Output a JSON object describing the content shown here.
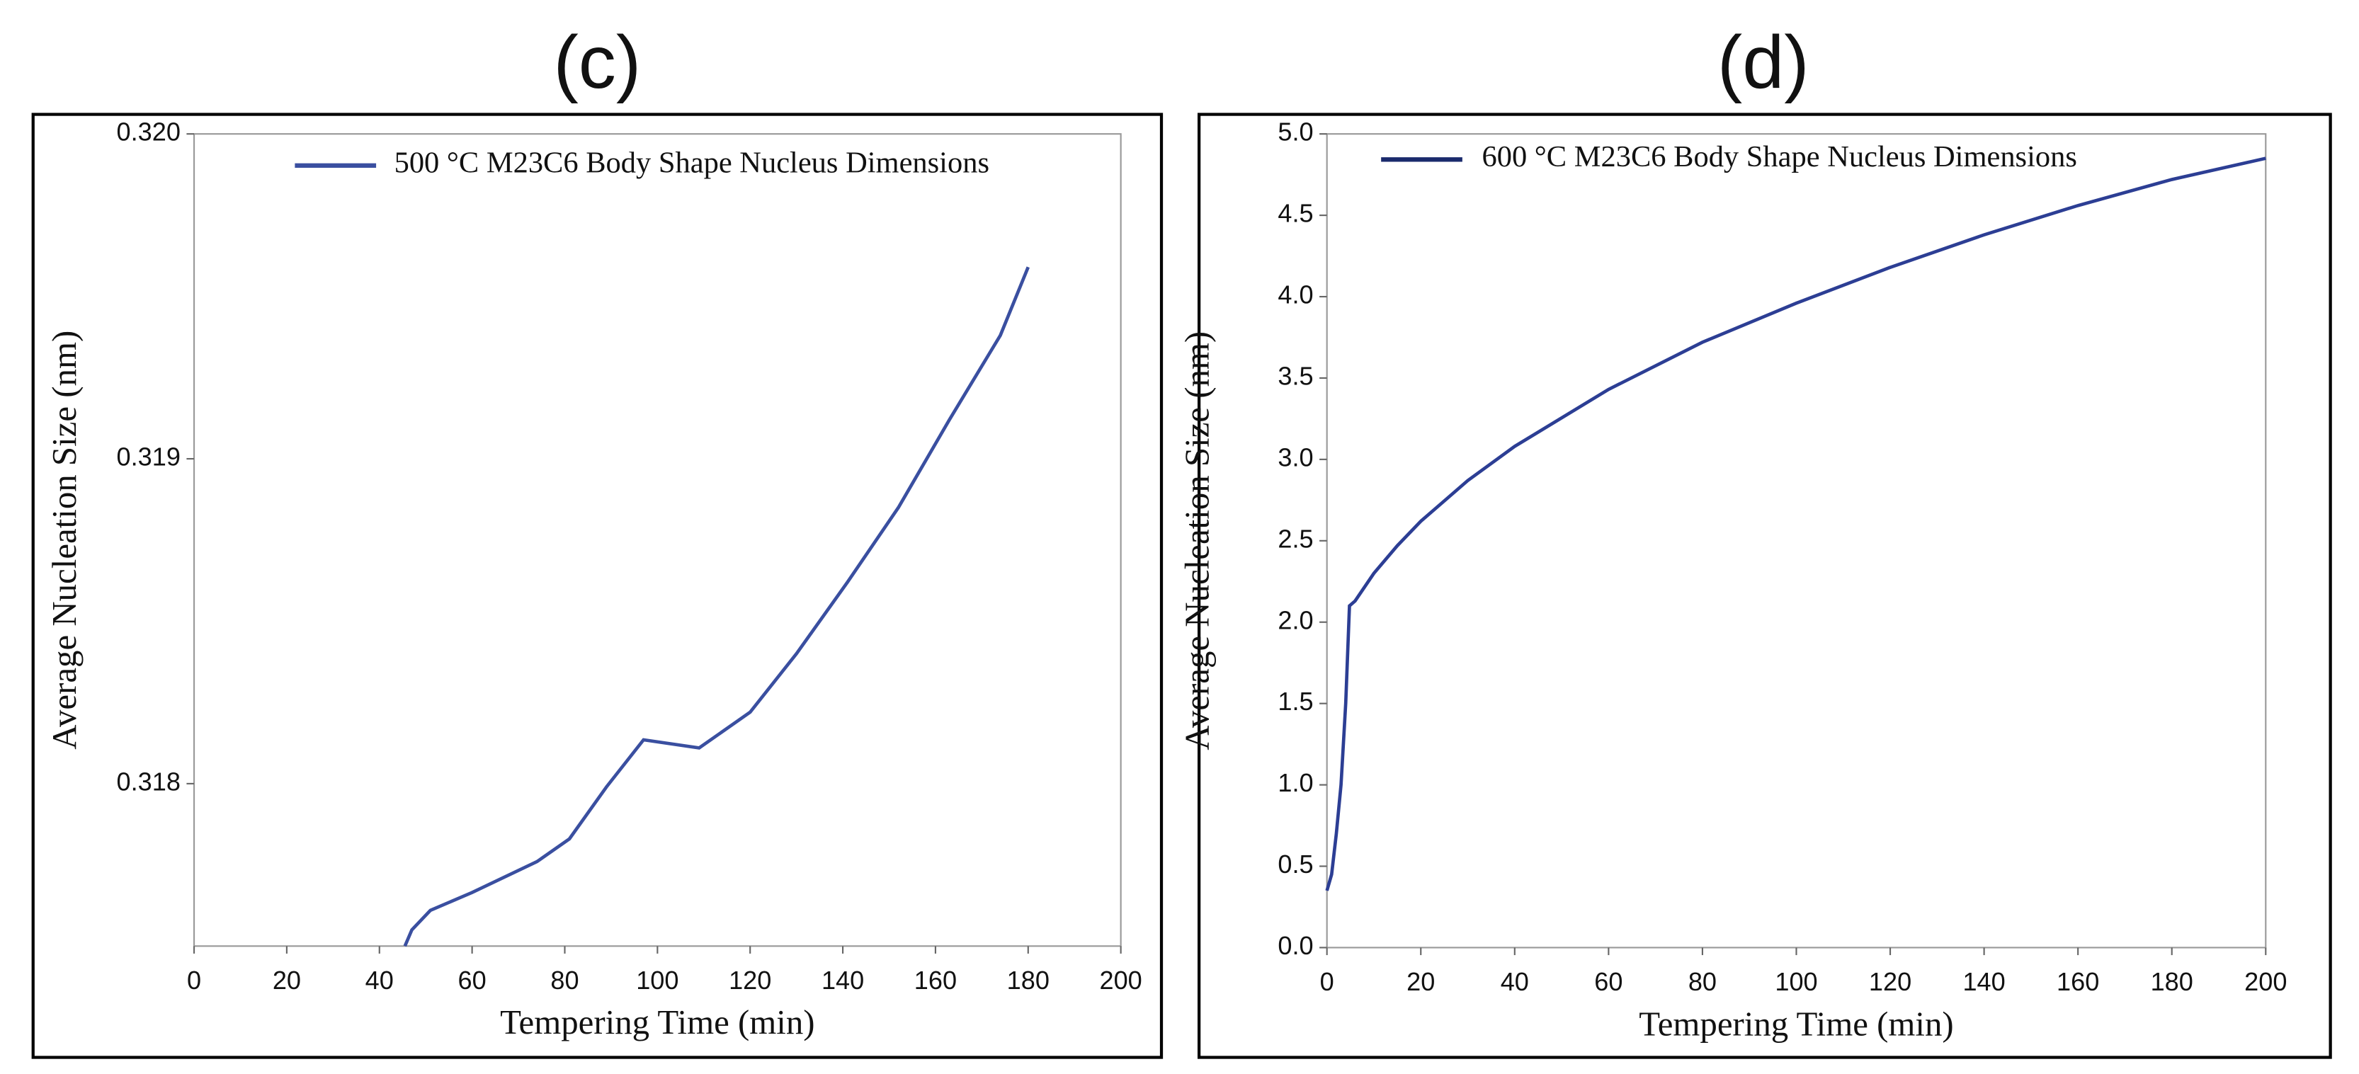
{
  "chart_data": [
    {
      "type": "line",
      "title": "(c)",
      "xlabel": "Tempering Time (min)",
      "ylabel": "Average Nucleation Size (nm)",
      "xlim": [
        0,
        200
      ],
      "xticks": [
        0,
        20,
        40,
        60,
        80,
        100,
        120,
        140,
        160,
        180,
        200
      ],
      "ylim": [
        0.3175,
        0.32
      ],
      "yticks": [
        0.318,
        0.319,
        {
          "value": 0.32,
          "label": "0.320"
        }
      ],
      "series": [
        {
          "name": "500 °C M23C6 Body Shape Nucleus Dimensions",
          "color": "#3a4fa0",
          "x": [
            45.5,
            47,
            51,
            60,
            74,
            81,
            89,
            97,
            109,
            120,
            130,
            141,
            152,
            163,
            174,
            180
          ],
          "values": [
            0.3175,
            0.31755,
            0.31761,
            0.317665,
            0.31776,
            0.31783,
            0.31799,
            0.318135,
            0.31811,
            0.31822,
            0.3184,
            0.31862,
            0.31885,
            0.31912,
            0.31938,
            0.31959
          ]
        }
      ]
    },
    {
      "type": "line",
      "title": "(d)",
      "xlabel": "Tempering Time (min)",
      "ylabel": "Average Nucleation Size (nm)",
      "xlim": [
        0,
        200
      ],
      "xticks": [
        0,
        20,
        40,
        60,
        80,
        100,
        120,
        140,
        160,
        180,
        200
      ],
      "ylim": [
        0,
        5
      ],
      "yticks": [
        {
          "value": 0,
          "label": "0.0"
        },
        0.5,
        {
          "value": 1,
          "label": "1.0"
        },
        1.5,
        {
          "value": 2,
          "label": "2.0"
        },
        2.5,
        {
          "value": 3,
          "label": "3.0"
        },
        3.5,
        {
          "value": 4,
          "label": "4.0"
        },
        4.5,
        {
          "value": 5,
          "label": "5.0"
        }
      ],
      "series": [
        {
          "name": "600 °C M23C6 Body Shape Nucleus Dimensions",
          "color": "#2c3e94",
          "x": [
            0,
            1,
            2,
            3,
            4,
            4.8,
            6,
            10,
            15,
            20,
            30,
            40,
            60,
            80,
            100,
            120,
            140,
            160,
            180,
            200
          ],
          "values": [
            0.35,
            0.45,
            0.7,
            1.0,
            1.5,
            2.1,
            2.13,
            2.3,
            2.47,
            2.62,
            2.87,
            3.08,
            3.43,
            3.72,
            3.96,
            4.18,
            4.38,
            4.56,
            4.72,
            4.85
          ]
        }
      ]
    }
  ]
}
